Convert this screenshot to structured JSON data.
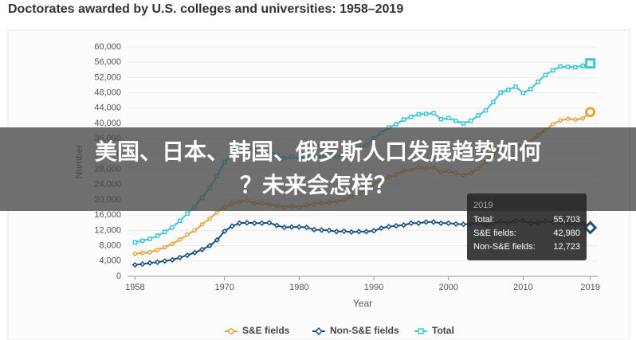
{
  "chart_data": {
    "type": "line",
    "title": "Doctorates awarded by U.S. colleges and universities: 1958–2019",
    "xlabel": "Year",
    "ylabel": "Number",
    "x": [
      1958,
      1959,
      1960,
      1961,
      1962,
      1963,
      1964,
      1965,
      1966,
      1967,
      1968,
      1969,
      1970,
      1971,
      1972,
      1973,
      1974,
      1975,
      1976,
      1977,
      1978,
      1979,
      1980,
      1981,
      1982,
      1983,
      1984,
      1985,
      1986,
      1987,
      1988,
      1989,
      1990,
      1991,
      1992,
      1993,
      1994,
      1995,
      1996,
      1997,
      1998,
      1999,
      2000,
      2001,
      2002,
      2003,
      2004,
      2005,
      2006,
      2007,
      2008,
      2009,
      2010,
      2011,
      2012,
      2013,
      2014,
      2015,
      2016,
      2017,
      2018,
      2019
    ],
    "series": [
      {
        "name": "S&E fields",
        "color": "#e9a23b",
        "marker": "circle",
        "values": [
          5900,
          6100,
          6300,
          6900,
          7600,
          8500,
          9600,
          10900,
          12000,
          13600,
          15100,
          16700,
          18100,
          19000,
          19500,
          19800,
          19100,
          19100,
          18900,
          18400,
          18100,
          18300,
          18100,
          18600,
          18900,
          19200,
          19300,
          19600,
          20100,
          20800,
          21800,
          22600,
          24200,
          24900,
          25900,
          26600,
          27600,
          27800,
          28500,
          28300,
          28500,
          27200,
          27500,
          27000,
          26400,
          27000,
          28200,
          29900,
          31800,
          33800,
          34800,
          35100,
          33500,
          35100,
          36900,
          38300,
          39800,
          40800,
          41200,
          41000,
          41300,
          42980
        ]
      },
      {
        "name": "Non-S&E fields",
        "color": "#1b4f7e",
        "marker": "diamond",
        "values": [
          3000,
          3200,
          3500,
          3700,
          4000,
          4300,
          4900,
          5500,
          6200,
          7000,
          8000,
          9500,
          11800,
          13100,
          13900,
          14000,
          13900,
          13900,
          14000,
          13300,
          12800,
          12900,
          12900,
          12800,
          12200,
          12100,
          12000,
          11700,
          11800,
          11600,
          11700,
          11700,
          11900,
          12600,
          13000,
          13200,
          13400,
          13900,
          13900,
          14200,
          14200,
          13900,
          13900,
          13700,
          13600,
          13700,
          13900,
          13500,
          13800,
          14300,
          14000,
          14500,
          14500,
          13900,
          14000,
          14400,
          14100,
          14100,
          13600,
          13700,
          13800,
          12723
        ]
      },
      {
        "name": "Total",
        "color": "#3cc8d2",
        "marker": "square",
        "values": [
          8900,
          9300,
          9800,
          10600,
          11600,
          12800,
          14500,
          16400,
          18200,
          20600,
          23100,
          26200,
          29900,
          32100,
          33400,
          33800,
          33000,
          33000,
          32900,
          31700,
          30900,
          31200,
          31000,
          31400,
          31100,
          31300,
          31300,
          31300,
          31900,
          32400,
          33500,
          34300,
          36100,
          37500,
          38900,
          39800,
          41000,
          41700,
          42400,
          42500,
          42700,
          41100,
          41400,
          40700,
          40000,
          40700,
          42100,
          43400,
          45600,
          48100,
          48800,
          49600,
          48000,
          49000,
          50900,
          52700,
          53900,
          54900,
          54800,
          54700,
          55100,
          55703
        ]
      }
    ],
    "xlim": [
      1957,
      2020
    ],
    "xticks": [
      1958,
      1970,
      1980,
      1990,
      2000,
      2010,
      2019
    ],
    "ylim": [
      0,
      60000
    ],
    "yticks": [
      0,
      {
        "value": 4000,
        "label": "4,000"
      },
      {
        "value": 8000,
        "label": "8,000"
      },
      {
        "value": 12000,
        "label": "12,000"
      },
      {
        "value": 16000,
        "label": "16,000"
      },
      {
        "value": 20000,
        "label": "20,000"
      },
      {
        "value": 24000,
        "label": "24,000"
      },
      {
        "value": 28000,
        "label": "28,000"
      },
      {
        "value": 32000,
        "label": "32,000"
      },
      {
        "value": 36000,
        "label": "36,000"
      },
      {
        "value": 40000,
        "label": "40,000"
      },
      {
        "value": 44000,
        "label": "44,000"
      },
      {
        "value": 48000,
        "label": "48,000"
      },
      {
        "value": 52000,
        "label": "52,000"
      },
      {
        "value": 56000,
        "label": "56,000"
      },
      {
        "value": 60000,
        "label": "60,000"
      }
    ],
    "legend": "bottom"
  },
  "tooltip": {
    "title": "2019",
    "rows": [
      {
        "label": "Total:",
        "value": "55,703"
      },
      {
        "label": "S&E fields:",
        "value": "42,980"
      },
      {
        "label": "Non-S&E fields:",
        "value": "12,723"
      }
    ]
  },
  "overlay": {
    "lines": [
      "美国、日本、韩国、俄罗斯人口发展趋势如何",
      "？未来会怎样？"
    ]
  }
}
